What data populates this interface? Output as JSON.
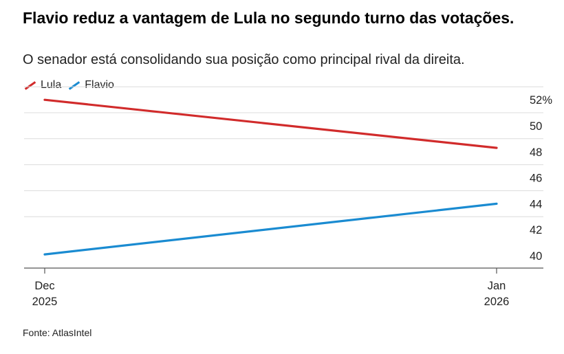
{
  "chart_data": {
    "type": "line",
    "title": "Flavio reduz a vantagem de Lula no segundo turno das votações.",
    "subtitle": "O senador está consolidando sua posição como principal rival da direita.",
    "x": [
      "Dec 2025",
      "Jan 2026"
    ],
    "x_tick_labels": [
      {
        "line1": "Dec",
        "line2": "2025"
      },
      {
        "line1": "Jan",
        "line2": "2026"
      }
    ],
    "series": [
      {
        "name": "Lula",
        "color": "#d12b2b",
        "values": [
          52.0,
          48.3
        ]
      },
      {
        "name": "Flavio",
        "color": "#1a8bd1",
        "values": [
          40.1,
          44.0
        ]
      }
    ],
    "ylim": [
      39.3,
      53.0
    ],
    "y_ticks": [
      40,
      42,
      44,
      46,
      48,
      50,
      52
    ],
    "y_tick_labels": [
      "40",
      "42",
      "44",
      "46",
      "48",
      "50",
      "52%"
    ],
    "y_axis_position": "right",
    "grid": true,
    "legend_position": "top-left",
    "source": "Fonte: AtlasIntel"
  }
}
